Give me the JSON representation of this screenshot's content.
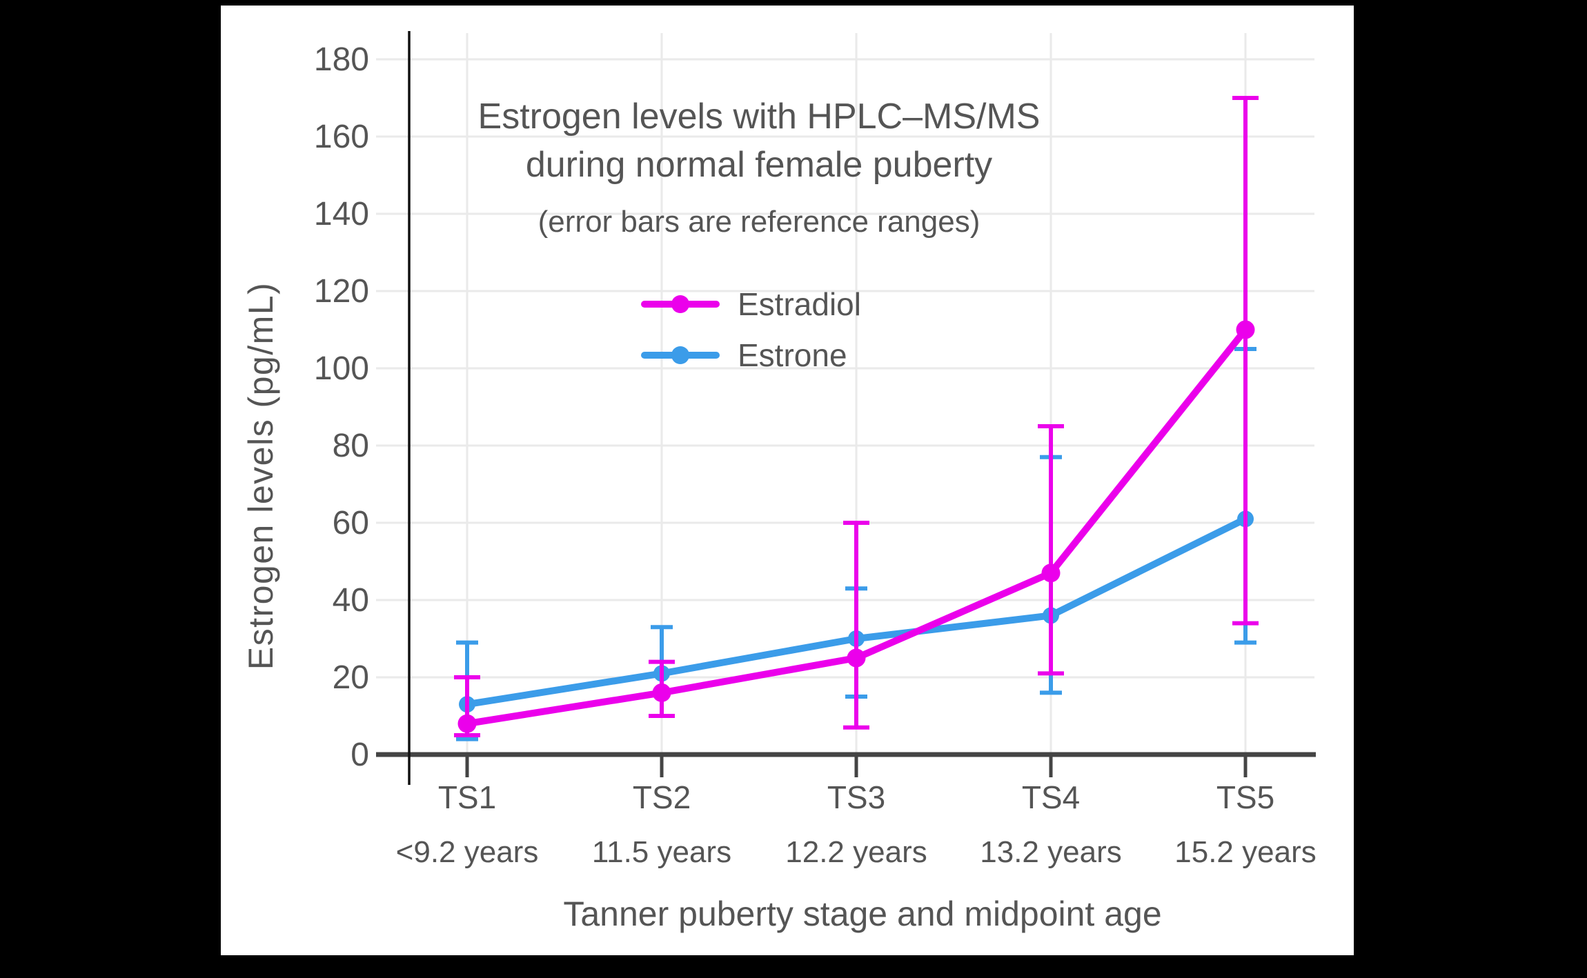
{
  "window": {
    "background": "#000000",
    "panel_background": "#ffffff"
  },
  "title": {
    "line1": "Estrogen levels with HPLC–MS/MS",
    "line2": "during normal female puberty",
    "subtitle": "(error bars are reference ranges)"
  },
  "y_axis": {
    "title": "Estrogen levels (pg/mL)"
  },
  "x_axis": {
    "title": "Tanner puberty stage and midpoint age"
  },
  "chart_data": {
    "type": "line",
    "title": "Estrogen levels with HPLC–MS/MS during normal female puberty",
    "subtitle": "(error bars are reference ranges)",
    "xlabel": "Tanner puberty stage and midpoint age",
    "ylabel": "Estrogen levels (pg/mL)",
    "categories": [
      "TS1",
      "TS2",
      "TS3",
      "TS4",
      "TS5"
    ],
    "category_ages": [
      "<9.2 years",
      "11.5 years",
      "12.2 years",
      "13.2 years",
      "15.2 years"
    ],
    "yticks": [
      0,
      20,
      40,
      60,
      80,
      100,
      120,
      140,
      160,
      180
    ],
    "ylim": [
      0,
      187
    ],
    "grid": true,
    "legend_position": "inside-upper-center-left",
    "error_bars": "reference ranges",
    "series": [
      {
        "name": "Estradiol",
        "color": "#EB00EB",
        "values": [
          8,
          16,
          25,
          47,
          110
        ],
        "error_low": [
          5,
          10,
          7,
          21,
          34
        ],
        "error_high": [
          20,
          24,
          60,
          85,
          170
        ]
      },
      {
        "name": "Estrone",
        "color": "#3B9CE9",
        "values": [
          13,
          21,
          30,
          36,
          61
        ],
        "error_low": [
          4,
          10,
          15,
          16,
          29
        ],
        "error_high": [
          29,
          33,
          43,
          77,
          105
        ]
      }
    ],
    "text_color": "#555555",
    "grid_color": "#EAEAEA",
    "x_axis_color": "#444444",
    "y_axis_line_color": "#111111"
  }
}
